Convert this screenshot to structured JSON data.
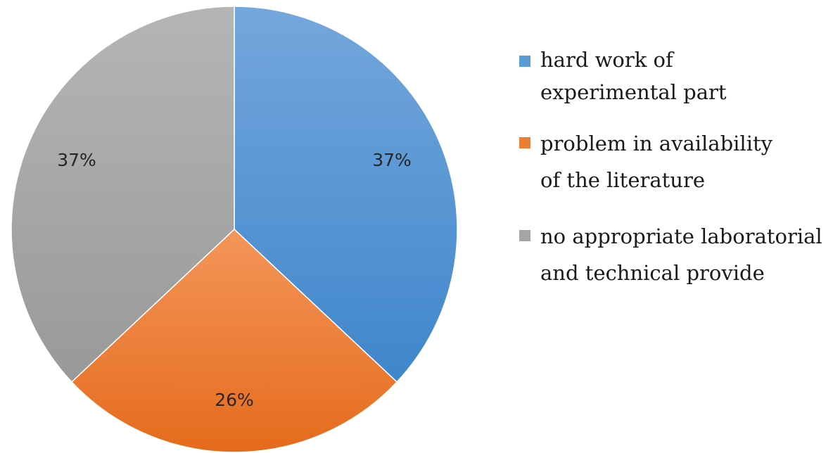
{
  "chart_data": {
    "type": "pie",
    "title": "",
    "slices": [
      {
        "label": "hard work of experimental part",
        "label_lines": [
          "hard work of",
          "experimental part"
        ],
        "value": 37,
        "display": "37%",
        "color": "#5b9bd5"
      },
      {
        "label": "problem in availability of the literature",
        "label_lines": [
          "problem in availability",
          "of the literature"
        ],
        "value": 26,
        "display": "26%",
        "color": "#ed7d31"
      },
      {
        "label": "no appropriate laboratorial and technical provide",
        "label_lines": [
          "no appropriate laboratorial",
          "and technical provide"
        ],
        "value": 37,
        "display": "37%",
        "color": "#a5a5a5"
      }
    ],
    "legend_position": "right"
  }
}
